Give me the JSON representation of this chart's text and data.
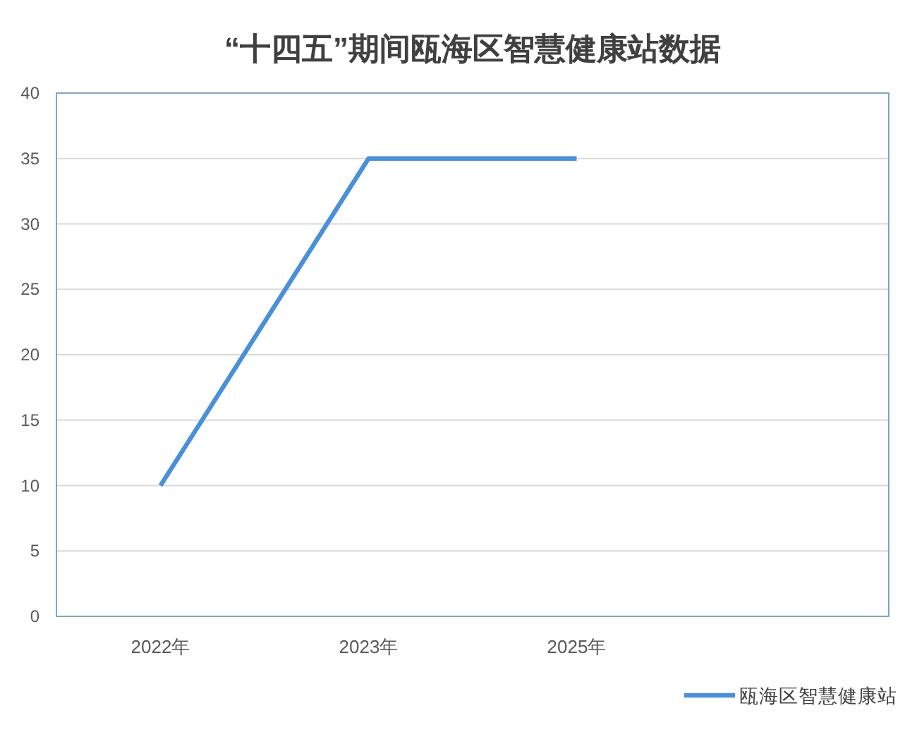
{
  "chart_data": {
    "type": "line",
    "title": "“十四五”期间瓯海区智慧健康站数据",
    "categories": [
      "2022年",
      "2023年",
      "2025年",
      null
    ],
    "series": [
      {
        "name": "瓯海区智慧健康站",
        "color": "#4a90d9",
        "values": [
          10,
          35,
          35,
          null
        ]
      }
    ],
    "ylim": [
      0,
      40
    ],
    "yticks": [
      0,
      5,
      10,
      15,
      20,
      25,
      30,
      35,
      40
    ],
    "grid": "y",
    "legend": "bottom right"
  }
}
